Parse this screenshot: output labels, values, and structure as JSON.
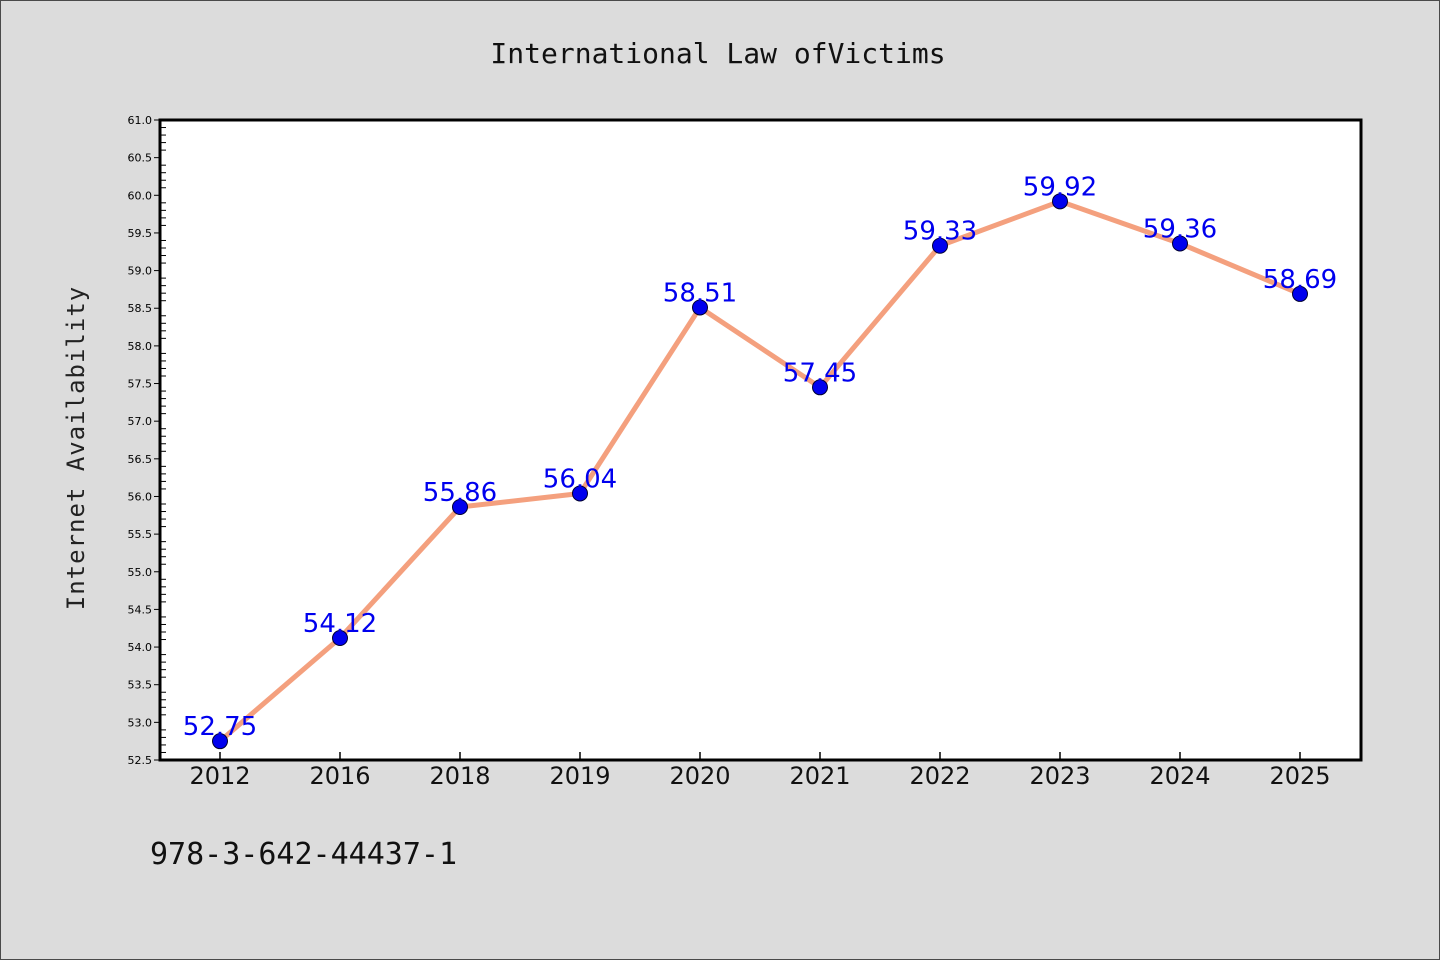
{
  "chart_data": {
    "type": "line",
    "title": "International Law ofVictims",
    "xlabel": "",
    "ylabel": "Internet Availability",
    "categories": [
      "2012",
      "2016",
      "2018",
      "2019",
      "2020",
      "2021",
      "2022",
      "2023",
      "2024",
      "2025"
    ],
    "values": [
      52.75,
      54.12,
      55.86,
      56.04,
      58.51,
      57.45,
      59.33,
      59.92,
      59.36,
      58.69
    ],
    "ylim": [
      52.5,
      61.0
    ],
    "ytick_step": 0.5,
    "grid": false,
    "legend": "none",
    "data_labels": true,
    "colors": {
      "line": "#f4a07e",
      "marker": "#0000ee",
      "label": "#0000ee",
      "plot_bg": "#ffffff",
      "figure_bg": "#dcdcdc"
    }
  },
  "footer": {
    "isbn": "978-3-642-44437-1"
  }
}
